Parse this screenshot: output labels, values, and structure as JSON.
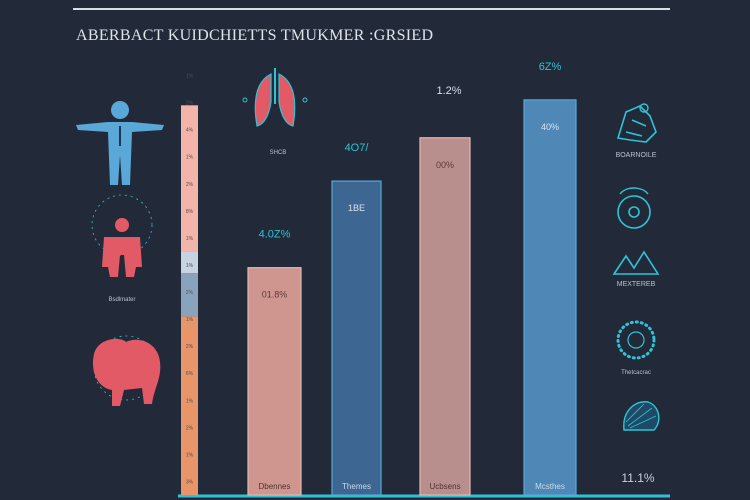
{
  "chart_data": {
    "type": "bar",
    "title": "ABERBACT KUIDCHIETTS TMUKMER :GRSIED",
    "categories": [
      "Dbennes",
      "Themes",
      "Ucbsens",
      "Mcsthes"
    ],
    "values": [
      42,
      58,
      66,
      73
    ],
    "value_labels": [
      "4.0Z%",
      "4O7/",
      "1.2%",
      "6Z%"
    ],
    "inner_labels": [
      "01.8%",
      "1BE",
      "00%",
      "40%"
    ],
    "ylim": [
      0,
      80
    ],
    "colors": [
      "#cf9690",
      "#3d6792",
      "#b88f8c",
      "#4f88b6"
    ],
    "stacked_column": {
      "segments": [
        {
          "value": 27,
          "color": "#f3b5a9"
        },
        {
          "value": 4,
          "color": "#c7d2e2"
        },
        {
          "value": 8,
          "color": "#8aa3bd"
        },
        {
          "value": 33,
          "color": "#e8956a"
        }
      ],
      "tick_labels": [
        "1%",
        "2%",
        "4%",
        "1%",
        "2%",
        "8%",
        "1%",
        "1%",
        "2%",
        "1%",
        "2%",
        "6%",
        "1%",
        "2%",
        "1%",
        "3%"
      ]
    }
  },
  "left_icons": [
    {
      "name": "lungs-icon",
      "label": "SHCB"
    },
    {
      "name": "body-outline-icon",
      "label": ""
    },
    {
      "name": "organ-body-icon",
      "label": "Bsdlmater"
    },
    {
      "name": "stomach-icon",
      "label": ""
    }
  ],
  "right_icons": [
    {
      "name": "figure-icon",
      "label": "BOARNOILE"
    },
    {
      "name": "circle-target-icon",
      "label": ""
    },
    {
      "name": "mountain-icon",
      "label": "MEXTEREB"
    },
    {
      "name": "dotted-ring-icon",
      "label": "Thetcacrac"
    },
    {
      "name": "shell-icon",
      "label": "11.1%"
    }
  ],
  "colors": {
    "background": "#222a3a",
    "accent": "#2ec4d6",
    "icon_blue": "#5aa8d8",
    "icon_red": "#e25a66",
    "rule": "#d9dde4"
  }
}
